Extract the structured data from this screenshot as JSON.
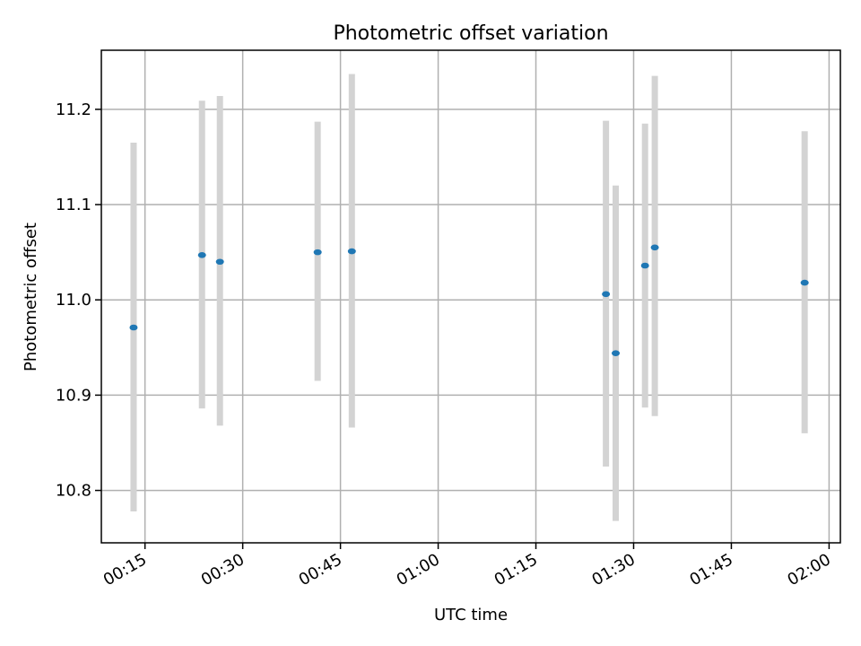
{
  "chart_data": {
    "type": "scatter",
    "title": "Photometric offset variation",
    "xlabel": "UTC time",
    "ylabel": "Photometric offset",
    "xlim": [
      "00:08:18",
      "02:01:44"
    ],
    "ylim": [
      10.745,
      11.262
    ],
    "xticks": [
      "00:15",
      "00:30",
      "00:45",
      "01:00",
      "01:15",
      "01:30",
      "01:45",
      "02:00"
    ],
    "yticks": [
      "10.8",
      "10.9",
      "11.0",
      "11.1",
      "11.2"
    ],
    "grid": true,
    "colors": {
      "point": "#1f77b4",
      "errorbar": "#d3d3d3",
      "grid": "#b0b0b0",
      "axes": "#000000"
    },
    "points": [
      {
        "x": "00:13:15",
        "y": 10.971,
        "y_low": 10.778,
        "y_high": 11.165
      },
      {
        "x": "00:23:45",
        "y": 11.047,
        "y_low": 10.886,
        "y_high": 11.209
      },
      {
        "x": "00:26:30",
        "y": 11.04,
        "y_low": 10.868,
        "y_high": 11.214
      },
      {
        "x": "00:41:30",
        "y": 11.05,
        "y_low": 10.915,
        "y_high": 11.187
      },
      {
        "x": "00:46:45",
        "y": 11.051,
        "y_low": 10.866,
        "y_high": 11.237
      },
      {
        "x": "01:25:45",
        "y": 11.006,
        "y_low": 10.825,
        "y_high": 11.188
      },
      {
        "x": "01:27:15",
        "y": 10.944,
        "y_low": 10.768,
        "y_high": 11.12
      },
      {
        "x": "01:31:45",
        "y": 11.036,
        "y_low": 10.887,
        "y_high": 11.185
      },
      {
        "x": "01:33:15",
        "y": 11.055,
        "y_low": 10.878,
        "y_high": 11.235
      },
      {
        "x": "01:56:15",
        "y": 11.018,
        "y_low": 10.86,
        "y_high": 11.177
      }
    ]
  }
}
